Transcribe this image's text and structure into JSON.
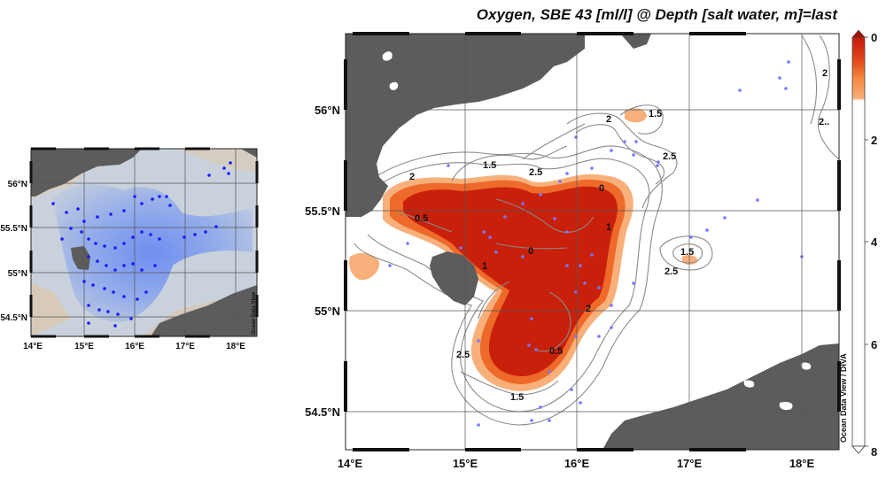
{
  "main_map": {
    "title": "Oxygen, SBE 43 [ml/l] @ Depth [salt water, m]=last",
    "watermark": "Ocean Data View / DIVA",
    "lon_ticks": [
      "14°E",
      "15°E",
      "16°E",
      "17°E",
      "18°E"
    ],
    "lat_ticks": [
      "56°N",
      "55.5°N",
      "55°N",
      "54.5°N"
    ],
    "contour_labels": [
      "2",
      "1.5",
      "2",
      "2.5",
      "2.5",
      "1.5",
      "0",
      "0.5",
      "0",
      "1",
      "1",
      "1.5",
      "2.5",
      "2",
      "2.5",
      "0.5",
      "1.5",
      "2",
      "2.."
    ],
    "colors": {
      "land": "#5c5c5c",
      "low": "#c8200b",
      "mid": "#ee6a2a",
      "high": "#f8b07a",
      "water": "#ffffff"
    }
  },
  "colorbar": {
    "ticks": [
      "0",
      "2",
      "4",
      "6",
      "8"
    ]
  },
  "inset_map": {
    "lon_ticks": [
      "14°E",
      "15°E",
      "16°E",
      "17°E",
      "18°E"
    ],
    "lat_ticks": [
      "56°N",
      "55.5°N",
      "55°N",
      "54.5°N"
    ],
    "watermark": "Ocean Data View"
  }
}
